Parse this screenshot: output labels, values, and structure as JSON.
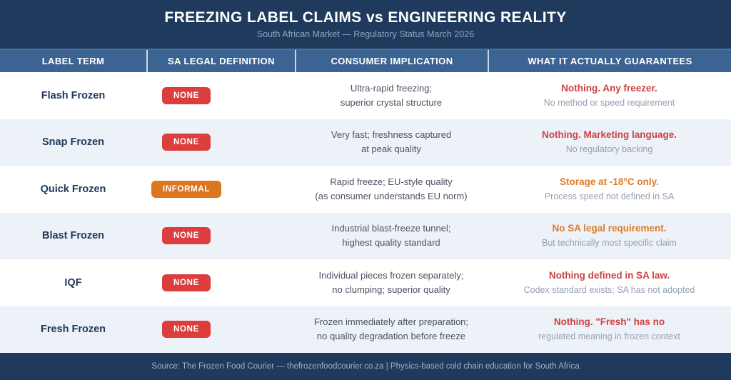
{
  "header": {
    "title": "FREEZING LABEL CLAIMS vs ENGINEERING REALITY",
    "subtitle": "South African Market — Regulatory Status March 2026"
  },
  "colors": {
    "navy": "#1F3A5C",
    "header_blue": "#3C6492",
    "row_alt": "#EDF2F8",
    "badge_red": "#DC3E3E",
    "badge_orange": "#DD771F",
    "text_red": "#CC4242",
    "text_orange": "#DE7C28",
    "subtext_gray": "#95A0B1",
    "implication_text": "#4A5261",
    "term_navy": "#21395B",
    "footer_text": "#9DB1C6"
  },
  "table": {
    "headers": [
      "LABEL TERM",
      "SA LEGAL DEFINITION",
      "CONSUMER IMPLICATION",
      "WHAT IT ACTUALLY GUARANTEES"
    ],
    "rows": [
      {
        "term": "Flash Frozen",
        "badge": "NONE",
        "badge_color": "badge_red",
        "implication": [
          "Ultra-rapid freezing;",
          "superior crystal structure"
        ],
        "guarantee_bold": "Nothing. Any freezer.",
        "guarantee_color": "text_red",
        "guarantee_sub": "No method or speed requirement"
      },
      {
        "term": "Snap Frozen",
        "badge": "NONE",
        "badge_color": "badge_red",
        "implication": [
          "Very fast; freshness captured",
          "at peak quality"
        ],
        "guarantee_bold": "Nothing. Marketing language.",
        "guarantee_color": "text_red",
        "guarantee_sub": "No regulatory backing"
      },
      {
        "term": "Quick Frozen",
        "badge": "INFORMAL",
        "badge_color": "badge_orange",
        "implication": [
          "Rapid freeze; EU-style quality",
          "(as consumer understands EU norm)"
        ],
        "guarantee_bold": "Storage at -18°C only.",
        "guarantee_color": "text_orange",
        "guarantee_sub": "Process speed not defined in SA"
      },
      {
        "term": "Blast Frozen",
        "badge": "NONE",
        "badge_color": "badge_red",
        "implication": [
          "Industrial blast-freeze tunnel;",
          "highest quality standard"
        ],
        "guarantee_bold": "No SA legal requirement.",
        "guarantee_color": "text_orange",
        "guarantee_sub": "But technically most specific claim"
      },
      {
        "term": "IQF",
        "badge": "NONE",
        "badge_color": "badge_red",
        "implication": [
          "Individual pieces frozen separately;",
          "no clumping; superior quality"
        ],
        "guarantee_bold": "Nothing defined in SA law.",
        "guarantee_color": "text_red",
        "guarantee_sub": "Codex standard exists; SA has not adopted"
      },
      {
        "term": "Fresh Frozen",
        "badge": "NONE",
        "badge_color": "badge_red",
        "implication": [
          "Frozen immediately after preparation;",
          "no quality degradation before freeze"
        ],
        "guarantee_bold": "Nothing. \"Fresh\" has no",
        "guarantee_color": "text_red",
        "guarantee_sub": "regulated meaning in frozen context"
      }
    ]
  },
  "footer": {
    "text": "Source: The Frozen Food Courier — thefrozenfoodcourier.co.za | Physics-based cold chain education for South Africa"
  },
  "chart_data": {
    "type": "table",
    "title": "FREEZING LABEL CLAIMS vs ENGINEERING REALITY",
    "subtitle": "South African Market — Regulatory Status March 2026",
    "columns": [
      "LABEL TERM",
      "SA LEGAL DEFINITION",
      "CONSUMER IMPLICATION",
      "WHAT IT ACTUALLY GUARANTEES"
    ],
    "rows": [
      [
        "Flash Frozen",
        "NONE",
        "Ultra-rapid freezing; superior crystal structure",
        "Nothing. Any freezer. No method or speed requirement"
      ],
      [
        "Snap Frozen",
        "NONE",
        "Very fast; freshness captured at peak quality",
        "Nothing. Marketing language. No regulatory backing"
      ],
      [
        "Quick Frozen",
        "INFORMAL",
        "Rapid freeze; EU-style quality (as consumer understands EU norm)",
        "Storage at -18°C only. Process speed not defined in SA"
      ],
      [
        "Blast Frozen",
        "NONE",
        "Industrial blast-freeze tunnel; highest quality standard",
        "No SA legal requirement. But technically most specific claim"
      ],
      [
        "IQF",
        "NONE",
        "Individual pieces frozen separately; no clumping; superior quality",
        "Nothing defined in SA law. Codex standard exists; SA has not adopted"
      ],
      [
        "Fresh Frozen",
        "NONE",
        "Frozen immediately after preparation; no quality degradation before freeze",
        "Nothing. \"Fresh\" has no regulated meaning in frozen context"
      ]
    ]
  }
}
